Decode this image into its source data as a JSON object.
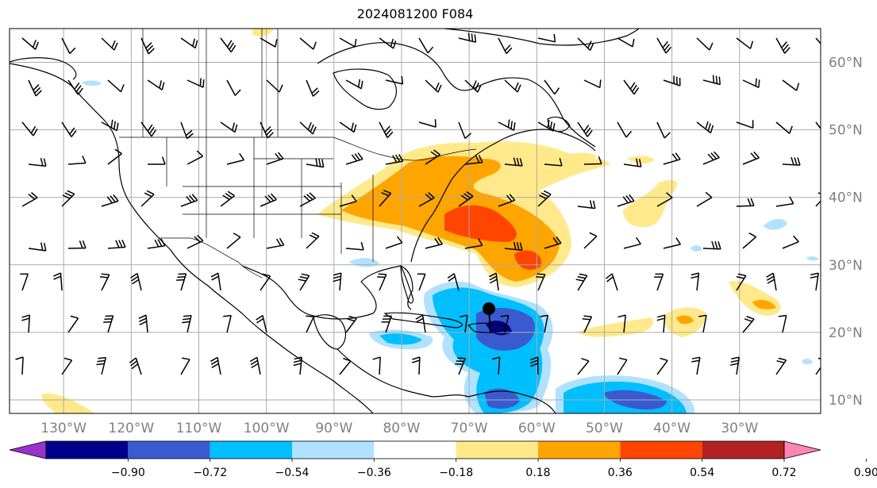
{
  "title": "2024081200 F084",
  "map": {
    "lon_labels": [
      "130°W",
      "120°W",
      "110°W",
      "100°W",
      "90°W",
      "80°W",
      "70°W",
      "60°W",
      "50°W",
      "40°W",
      "30°W"
    ],
    "lon_values": [
      -130,
      -120,
      -110,
      -100,
      -90,
      -80,
      -70,
      -60,
      -50,
      -40,
      -30
    ],
    "lat_labels": [
      "60°N",
      "50°N",
      "40°N",
      "30°N",
      "20°N",
      "10°N"
    ],
    "lat_values": [
      60,
      50,
      40,
      30,
      20,
      10
    ],
    "extent": {
      "lon_min": -138,
      "lon_max": -18,
      "lat_min": 8,
      "lat_max": 65
    },
    "label_color": "#808080",
    "grid_color": "#aaaaaa",
    "marker": {
      "type": "storm-position-dot",
      "lon": -70,
      "lat": 23.5
    }
  },
  "colorbar": {
    "tick_labels": [
      "−0.90",
      "−0.72",
      "−0.54",
      "−0.36",
      "−0.18",
      "0.18",
      "0.36",
      "0.54",
      "0.72",
      "0.90"
    ],
    "levels": [
      -0.9,
      -0.72,
      -0.54,
      -0.36,
      -0.18,
      0.18,
      0.36,
      0.54,
      0.72,
      0.9
    ],
    "colors": [
      "#9932cc",
      "#00008b",
      "#3a5bd0",
      "#00bfff",
      "#b0e2ff",
      "#ffffff",
      "#ffe98a",
      "#ffa500",
      "#ff4500",
      "#b22222",
      "#ff85b3"
    ],
    "extend": "both"
  }
}
